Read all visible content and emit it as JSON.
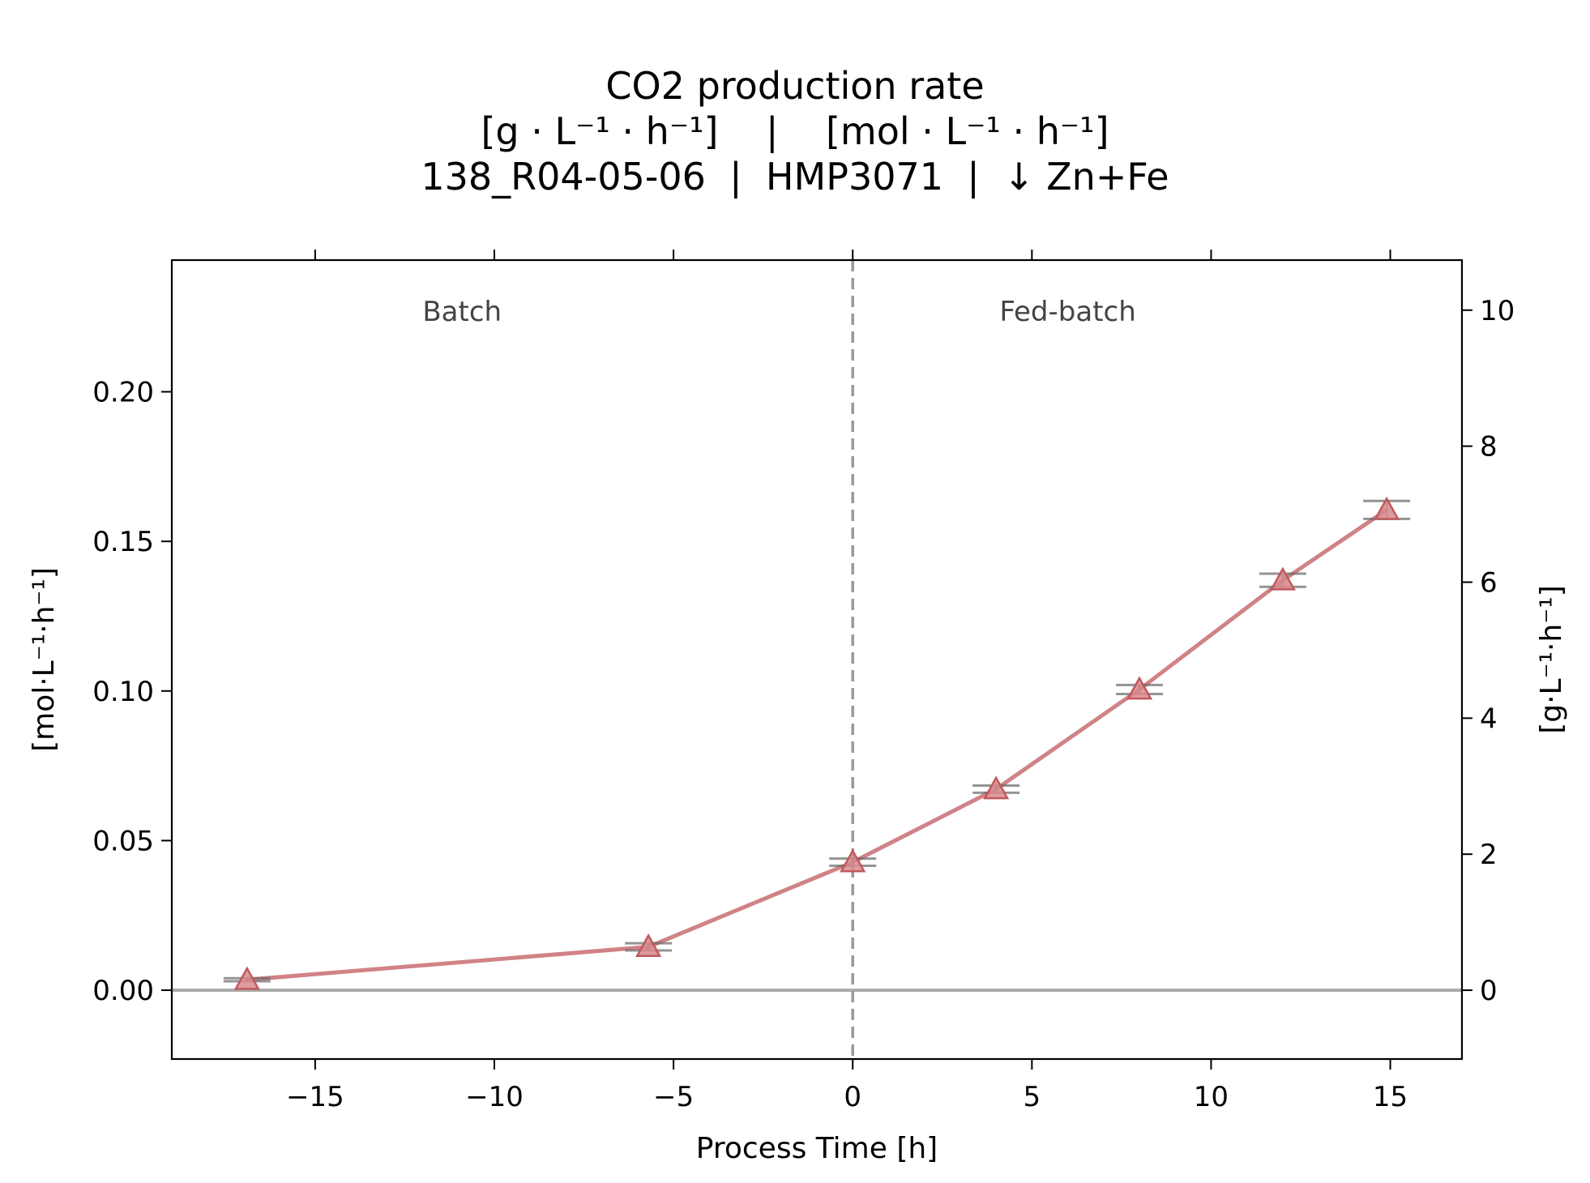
{
  "chart_data": {
    "type": "line",
    "title_lines": [
      "CO2 production rate",
      "[g · L⁻¹ · h⁻¹]    |    [mol · L⁻¹ · h⁻¹]",
      "138_R04-05-06  |  HMP3071  |  ↓ Zn+Fe"
    ],
    "xlabel": "Process Time [h]",
    "ylabel_left": "[mol·L⁻¹·h⁻¹]",
    "ylabel_right": "[g·L⁻¹·h⁻¹]",
    "xlim": [
      -19,
      17
    ],
    "ylim_left": [
      -0.023,
      0.244
    ],
    "ylim_right": [
      -1.012,
      10.736
    ],
    "x_ticks": [
      -15,
      -10,
      -5,
      0,
      5,
      10,
      15
    ],
    "x_tick_labels": [
      "−15",
      "−10",
      "−5",
      "0",
      "5",
      "10",
      "15"
    ],
    "y_left_ticks": [
      0.0,
      0.05,
      0.1,
      0.15,
      0.2
    ],
    "y_left_tick_labels": [
      "0.00",
      "0.05",
      "0.10",
      "0.15",
      "0.20"
    ],
    "y_right_ticks": [
      0,
      2,
      4,
      6,
      8,
      10
    ],
    "y_right_tick_labels": [
      "0",
      "2",
      "4",
      "6",
      "8",
      "10"
    ],
    "phase_divider_x": 0,
    "phase_labels": [
      {
        "text": "Batch",
        "x": -10.9
      },
      {
        "text": "Fed-batch",
        "x": 6.0
      }
    ],
    "series": [
      {
        "axis": "left",
        "marker": "triangle",
        "color": "#c0595e",
        "x": [
          -16.9,
          -5.7,
          0.0,
          4.0,
          8.0,
          12.0,
          14.9
        ],
        "y": [
          0.0035,
          0.0145,
          0.0428,
          0.0672,
          0.1005,
          0.137,
          0.1605
        ],
        "err": [
          0.0005,
          0.0012,
          0.0012,
          0.0012,
          0.0015,
          0.0022,
          0.003
        ]
      }
    ],
    "grid": false,
    "colors": {
      "line": "#c0595e",
      "marker_fill": "#d98a8d",
      "errorbar": "#666666",
      "zero_line": "#aaaaaa",
      "divider": "#999999"
    }
  }
}
